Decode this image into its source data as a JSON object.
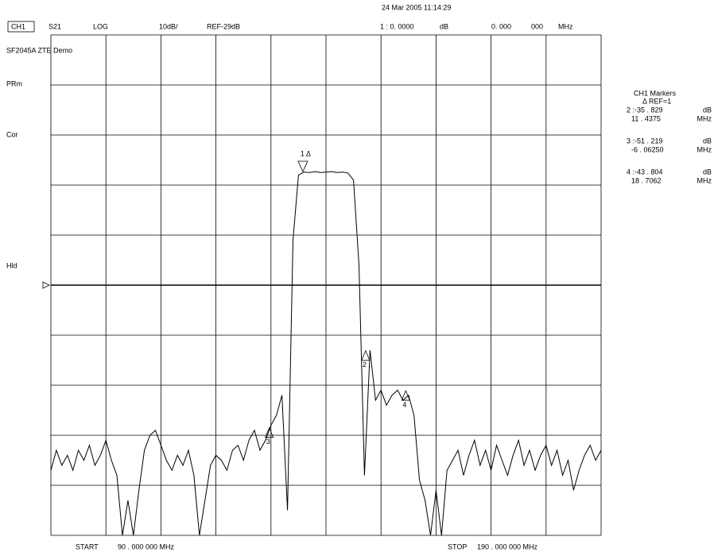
{
  "chart_data": {
    "type": "line",
    "date": "24 Mar 2005 11:14:29",
    "header": [
      "CH1",
      "S21",
      "LOG",
      "10dB/",
      "REF-29dB",
      "1 : 0. 0000",
      "dB",
      "0. 000",
      "000",
      "MHz"
    ],
    "side_labels": [
      "SF2045A ZTE Demo",
      "PRm",
      "Cor",
      "Hld"
    ],
    "readout_title": "CH1  Markers",
    "readout_ref": "Δ REF=1",
    "readout_rows": [
      [
        "2 :-35   . 829",
        "dB"
      ],
      [
        "11 . 4375",
        "MHz"
      ],
      [
        "3 :-51   . 219",
        "dB"
      ],
      [
        "-6 . 06250",
        "MHz"
      ],
      [
        "4 :-43   . 804",
        "dB"
      ],
      [
        "18 . 7062",
        "MHz"
      ]
    ],
    "start_label": "START",
    "start_value": "90 . 000   000   MHz",
    "stop_label": "STOP",
    "stop_value": "190  . 000   000   MHz",
    "xlim": [
      90,
      190
    ],
    "ylim": [
      -79,
      21
    ],
    "grid_divisions": 10,
    "ref_level": -29,
    "color": "#000000",
    "x": [
      90,
      91,
      92,
      93,
      94,
      95,
      96,
      97,
      98,
      99,
      100,
      101,
      102,
      103,
      104,
      105,
      106,
      107,
      108,
      109,
      110,
      111,
      112,
      113,
      114,
      115,
      116,
      117,
      118,
      119,
      120,
      121,
      122,
      123,
      124,
      125,
      126,
      127,
      128,
      129,
      130,
      131,
      132,
      133,
      134,
      135,
      136,
      137,
      138,
      139,
      140,
      141,
      142,
      143,
      144,
      145,
      146,
      147,
      148,
      149,
      150,
      151,
      152,
      153,
      154,
      155,
      156,
      157,
      158,
      159,
      160,
      161,
      162,
      163,
      164,
      165,
      166,
      167,
      168,
      169,
      170,
      171,
      172,
      173,
      174,
      175,
      176,
      177,
      178,
      179,
      180,
      181,
      182,
      183,
      184,
      185,
      186,
      187,
      188,
      189,
      190
    ],
    "values": [
      -66,
      -62,
      -65,
      -63,
      -66,
      -62,
      -64,
      -61,
      -65,
      -63,
      -60,
      -64,
      -67,
      -79,
      -72,
      -79,
      -70,
      -62,
      -59,
      -58,
      -61,
      -64,
      -66,
      -63,
      -65,
      -62,
      -67,
      -79,
      -72,
      -65,
      -63,
      -64,
      -66,
      -62,
      -61,
      -64,
      -60,
      -58,
      -62,
      -60,
      -57,
      -55,
      -51,
      -74,
      -20,
      -7,
      -6.4,
      -6.5,
      -6.3,
      -6.5,
      -6.4,
      -6.3,
      -6.5,
      -6.4,
      -6.6,
      -8,
      -25,
      -67,
      -42,
      -52,
      -50,
      -53,
      -51,
      -50,
      -52,
      -51,
      -55,
      -68,
      -72,
      -79,
      -70,
      -79,
      -66,
      -64,
      -62,
      -67,
      -63,
      -60,
      -65,
      -62,
      -66,
      -61,
      -64,
      -67,
      -63,
      -60,
      -65,
      -62,
      -66,
      -63,
      -61,
      -65,
      -62,
      -67,
      -64,
      -70,
      -66,
      -63,
      -61,
      -64,
      -62
    ],
    "markers": [
      {
        "label": "1 Δ",
        "x": 135.8,
        "y": -6.3
      },
      {
        "label": "2",
        "x": 147.2,
        "y": -42.1
      },
      {
        "label": "3",
        "x": 129.7,
        "y": -57.5
      },
      {
        "label": "4",
        "x": 154.5,
        "y": -50.1
      }
    ]
  }
}
